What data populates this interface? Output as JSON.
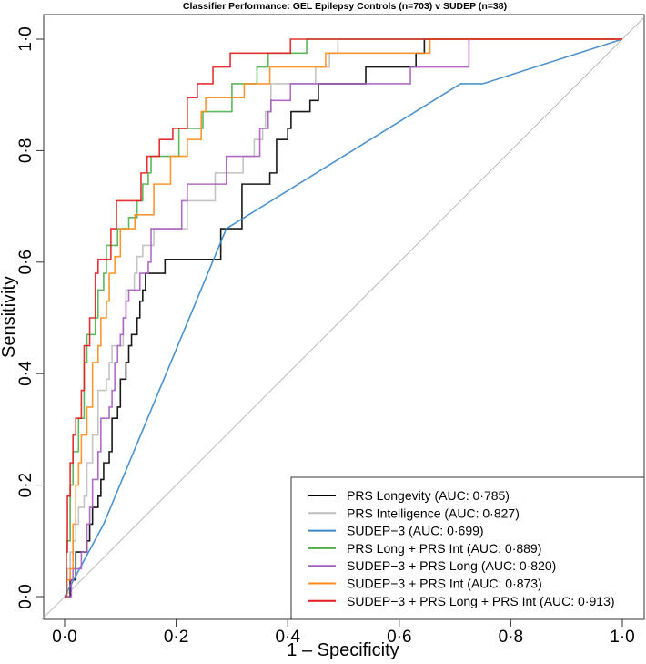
{
  "chart_data": {
    "type": "line",
    "title": "Classifier Performance: GEL Epilepsy Controls (n=703) v SUDEP (n=38)",
    "xlabel": "1 – Specificity",
    "ylabel": "Sensitivity",
    "xlim": [
      0,
      1
    ],
    "ylim": [
      0,
      1
    ],
    "xticks": [
      0,
      0.2,
      0.4,
      0.6,
      0.8,
      1.0
    ],
    "xtick_labels": [
      "0·0",
      "0·2",
      "0·4",
      "0·6",
      "0·8",
      "1·0"
    ],
    "yticks": [
      0,
      0.2,
      0.4,
      0.6,
      0.8,
      1.0
    ],
    "ytick_labels": [
      "0·0",
      "0·2",
      "0·4",
      "0·6",
      "0·8",
      "1·0"
    ],
    "grid": false,
    "reference_line": {
      "x": [
        0,
        1
      ],
      "y": [
        0,
        1
      ],
      "color": "#bbbbbb"
    },
    "legend_position": "bottom-right",
    "series": [
      {
        "name": "PRS Longevity (AUC: 0·785)",
        "color": "#000000",
        "step": true,
        "points": [
          [
            0,
            0
          ],
          [
            0.01,
            0.03
          ],
          [
            0.02,
            0.08
          ],
          [
            0.04,
            0.1
          ],
          [
            0.045,
            0.13
          ],
          [
            0.05,
            0.16
          ],
          [
            0.06,
            0.18
          ],
          [
            0.065,
            0.21
          ],
          [
            0.07,
            0.24
          ],
          [
            0.08,
            0.26
          ],
          [
            0.085,
            0.32
          ],
          [
            0.095,
            0.34
          ],
          [
            0.1,
            0.39
          ],
          [
            0.11,
            0.42
          ],
          [
            0.115,
            0.45
          ],
          [
            0.12,
            0.47
          ],
          [
            0.13,
            0.5
          ],
          [
            0.135,
            0.53
          ],
          [
            0.14,
            0.55
          ],
          [
            0.145,
            0.58
          ],
          [
            0.155,
            0.58
          ],
          [
            0.18,
            0.605
          ],
          [
            0.28,
            0.605
          ],
          [
            0.28,
            0.66
          ],
          [
            0.318,
            0.66
          ],
          [
            0.318,
            0.74
          ],
          [
            0.368,
            0.74
          ],
          [
            0.368,
            0.76
          ],
          [
            0.38,
            0.76
          ],
          [
            0.38,
            0.82
          ],
          [
            0.4,
            0.82
          ],
          [
            0.4,
            0.84
          ],
          [
            0.406,
            0.87
          ],
          [
            0.44,
            0.87
          ],
          [
            0.44,
            0.89
          ],
          [
            0.455,
            0.89
          ],
          [
            0.455,
            0.92
          ],
          [
            0.54,
            0.92
          ],
          [
            0.54,
            0.95
          ],
          [
            0.63,
            0.95
          ],
          [
            0.63,
            0.975
          ],
          [
            0.645,
            0.975
          ],
          [
            0.645,
            1.0
          ],
          [
            1,
            1
          ]
        ]
      },
      {
        "name": "PRS Intelligence (AUC: 0·827)",
        "color": "#bebebe",
        "step": true,
        "points": [
          [
            0,
            0
          ],
          [
            0.005,
            0.05
          ],
          [
            0.01,
            0.08
          ],
          [
            0.015,
            0.1
          ],
          [
            0.02,
            0.13
          ],
          [
            0.025,
            0.16
          ],
          [
            0.035,
            0.18
          ],
          [
            0.04,
            0.24
          ],
          [
            0.05,
            0.29
          ],
          [
            0.06,
            0.37
          ],
          [
            0.075,
            0.39
          ],
          [
            0.08,
            0.42
          ],
          [
            0.085,
            0.45
          ],
          [
            0.1,
            0.45
          ],
          [
            0.105,
            0.5
          ],
          [
            0.11,
            0.55
          ],
          [
            0.12,
            0.55
          ],
          [
            0.125,
            0.58
          ],
          [
            0.13,
            0.61
          ],
          [
            0.14,
            0.63
          ],
          [
            0.15,
            0.63
          ],
          [
            0.16,
            0.66
          ],
          [
            0.2,
            0.66
          ],
          [
            0.22,
            0.71
          ],
          [
            0.26,
            0.71
          ],
          [
            0.27,
            0.76
          ],
          [
            0.3,
            0.76
          ],
          [
            0.32,
            0.79
          ],
          [
            0.34,
            0.82
          ],
          [
            0.355,
            0.84
          ],
          [
            0.36,
            0.87
          ],
          [
            0.37,
            0.92
          ],
          [
            0.45,
            0.95
          ],
          [
            0.475,
            0.975
          ],
          [
            0.49,
            1.0
          ],
          [
            1,
            1
          ]
        ]
      },
      {
        "name": "SUDEP−3 (AUC: 0·699)",
        "color": "#3a86c8",
        "step": false,
        "points": [
          [
            0,
            0
          ],
          [
            0.07,
            0.13
          ],
          [
            0.29,
            0.66
          ],
          [
            0.71,
            0.92
          ],
          [
            0.75,
            0.92
          ],
          [
            1,
            1
          ]
        ]
      },
      {
        "name": "PRS Long + PRS Int (AUC: 0·889)",
        "color": "#4daf4a",
        "step": true,
        "points": [
          [
            0,
            0
          ],
          [
            0.003,
            0.1
          ],
          [
            0.01,
            0.2
          ],
          [
            0.015,
            0.26
          ],
          [
            0.025,
            0.32
          ],
          [
            0.035,
            0.42
          ],
          [
            0.04,
            0.47
          ],
          [
            0.055,
            0.5
          ],
          [
            0.06,
            0.55
          ],
          [
            0.07,
            0.58
          ],
          [
            0.075,
            0.63
          ],
          [
            0.09,
            0.63
          ],
          [
            0.095,
            0.66
          ],
          [
            0.11,
            0.66
          ],
          [
            0.115,
            0.68
          ],
          [
            0.13,
            0.71
          ],
          [
            0.14,
            0.74
          ],
          [
            0.15,
            0.76
          ],
          [
            0.155,
            0.79
          ],
          [
            0.2,
            0.79
          ],
          [
            0.205,
            0.84
          ],
          [
            0.248,
            0.87
          ],
          [
            0.3,
            0.87
          ],
          [
            0.3,
            0.92
          ],
          [
            0.345,
            0.92
          ],
          [
            0.345,
            0.95
          ],
          [
            0.365,
            0.95
          ],
          [
            0.365,
            0.975
          ],
          [
            0.434,
            0.975
          ],
          [
            0.434,
            1.0
          ],
          [
            1,
            1
          ]
        ]
      },
      {
        "name": "SUDEP−3 + PRS Long (AUC: 0·820)",
        "color": "#a65dc0",
        "step": true,
        "points": [
          [
            0,
            0
          ],
          [
            0.012,
            0
          ],
          [
            0.012,
            0.03
          ],
          [
            0.015,
            0.05
          ],
          [
            0.03,
            0.08
          ],
          [
            0.04,
            0.13
          ],
          [
            0.045,
            0.16
          ],
          [
            0.05,
            0.21
          ],
          [
            0.06,
            0.26
          ],
          [
            0.065,
            0.32
          ],
          [
            0.08,
            0.34
          ],
          [
            0.085,
            0.37
          ],
          [
            0.09,
            0.42
          ],
          [
            0.095,
            0.45
          ],
          [
            0.1,
            0.47
          ],
          [
            0.105,
            0.5
          ],
          [
            0.11,
            0.53
          ],
          [
            0.115,
            0.55
          ],
          [
            0.13,
            0.55
          ],
          [
            0.135,
            0.58
          ],
          [
            0.15,
            0.6
          ],
          [
            0.155,
            0.66
          ],
          [
            0.2,
            0.66
          ],
          [
            0.21,
            0.71
          ],
          [
            0.22,
            0.74
          ],
          [
            0.28,
            0.74
          ],
          [
            0.29,
            0.79
          ],
          [
            0.345,
            0.79
          ],
          [
            0.35,
            0.84
          ],
          [
            0.365,
            0.87
          ],
          [
            0.37,
            0.89
          ],
          [
            0.4,
            0.89
          ],
          [
            0.405,
            0.92
          ],
          [
            0.62,
            0.92
          ],
          [
            0.62,
            0.95
          ],
          [
            0.725,
            0.95
          ],
          [
            0.725,
            1.0
          ],
          [
            1,
            1
          ]
        ]
      },
      {
        "name": "SUDEP−3 + PRS Int (AUC: 0·873)",
        "color": "#ff8c1a",
        "step": true,
        "points": [
          [
            0,
            0
          ],
          [
            0.003,
            0.03
          ],
          [
            0.01,
            0.05
          ],
          [
            0.015,
            0.13
          ],
          [
            0.02,
            0.2
          ],
          [
            0.025,
            0.24
          ],
          [
            0.03,
            0.29
          ],
          [
            0.04,
            0.34
          ],
          [
            0.05,
            0.42
          ],
          [
            0.06,
            0.45
          ],
          [
            0.065,
            0.5
          ],
          [
            0.075,
            0.53
          ],
          [
            0.08,
            0.58
          ],
          [
            0.09,
            0.61
          ],
          [
            0.1,
            0.66
          ],
          [
            0.126,
            0.685
          ],
          [
            0.147,
            0.685
          ],
          [
            0.16,
            0.74
          ],
          [
            0.18,
            0.74
          ],
          [
            0.19,
            0.79
          ],
          [
            0.22,
            0.79
          ],
          [
            0.22,
            0.82
          ],
          [
            0.24,
            0.82
          ],
          [
            0.245,
            0.87
          ],
          [
            0.253,
            0.895
          ],
          [
            0.322,
            0.895
          ],
          [
            0.322,
            0.92
          ],
          [
            0.368,
            0.92
          ],
          [
            0.368,
            0.95
          ],
          [
            0.468,
            0.95
          ],
          [
            0.468,
            0.975
          ],
          [
            0.655,
            0.975
          ],
          [
            0.655,
            1.0
          ],
          [
            1,
            1
          ]
        ]
      },
      {
        "name": "SUDEP−3 + PRS Long + PRS Int (AUC: 0·913)",
        "color": "#e41a1c",
        "step": true,
        "points": [
          [
            0,
            0
          ],
          [
            0.003,
            0.08
          ],
          [
            0.005,
            0.18
          ],
          [
            0.01,
            0.24
          ],
          [
            0.015,
            0.29
          ],
          [
            0.02,
            0.32
          ],
          [
            0.03,
            0.37
          ],
          [
            0.035,
            0.45
          ],
          [
            0.045,
            0.5
          ],
          [
            0.055,
            0.58
          ],
          [
            0.06,
            0.605
          ],
          [
            0.075,
            0.605
          ],
          [
            0.083,
            0.66
          ],
          [
            0.093,
            0.71
          ],
          [
            0.137,
            0.71
          ],
          [
            0.137,
            0.76
          ],
          [
            0.148,
            0.79
          ],
          [
            0.17,
            0.79
          ],
          [
            0.17,
            0.82
          ],
          [
            0.194,
            0.84
          ],
          [
            0.22,
            0.895
          ],
          [
            0.238,
            0.895
          ],
          [
            0.238,
            0.92
          ],
          [
            0.266,
            0.92
          ],
          [
            0.266,
            0.95
          ],
          [
            0.297,
            0.95
          ],
          [
            0.297,
            0.975
          ],
          [
            0.405,
            0.975
          ],
          [
            0.405,
            1.0
          ],
          [
            1,
            1
          ]
        ]
      }
    ]
  }
}
